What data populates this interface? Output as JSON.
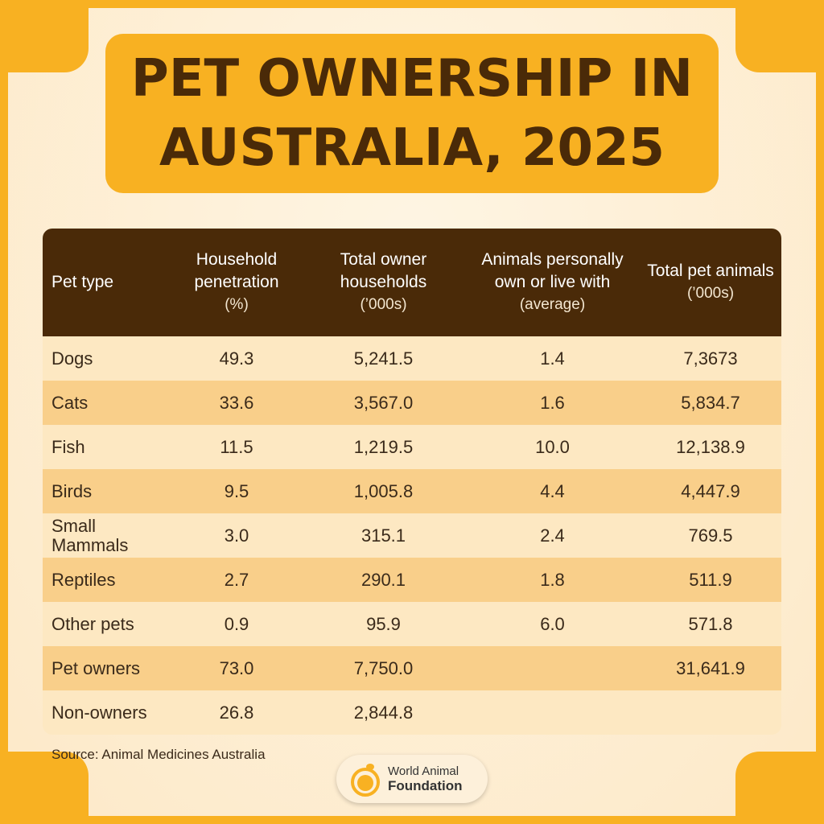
{
  "title": {
    "line1": "PET OWNERSHIP IN",
    "line2": "AUSTRALIA, 2025"
  },
  "table": {
    "headers": [
      {
        "main": "Pet type",
        "sub": ""
      },
      {
        "main": "Household penetration",
        "sub": "(%)"
      },
      {
        "main": "Total owner households",
        "sub": "(’000s)"
      },
      {
        "main": "Animals personally own or live with",
        "sub": "(average)"
      },
      {
        "main": "Total pet animals",
        "sub": "(’000s)"
      }
    ],
    "rows": [
      [
        "Dogs",
        "49.3",
        "5,241.5",
        "1.4",
        "7,3673"
      ],
      [
        "Cats",
        "33.6",
        "3,567.0",
        "1.6",
        "5,834.7"
      ],
      [
        "Fish",
        "11.5",
        "1,219.5",
        "10.0",
        "12,138.9"
      ],
      [
        "Birds",
        "9.5",
        "1,005.8",
        "4.4",
        "4,447.9"
      ],
      [
        "Small Mammals",
        "3.0",
        "315.1",
        "2.4",
        "769.5"
      ],
      [
        "Reptiles",
        "2.7",
        "290.1",
        "1.8",
        "511.9"
      ],
      [
        "Other pets",
        "0.9",
        "95.9",
        "6.0",
        "571.8"
      ],
      [
        "Pet owners",
        "73.0",
        "7,750.0",
        "",
        "31,641.9"
      ],
      [
        "Non-owners",
        "26.8",
        "2,844.8",
        "",
        ""
      ]
    ]
  },
  "source": "Source: Animal Medicines Australia",
  "logo": {
    "line1": "World Animal",
    "line2": "Foundation"
  },
  "colors": {
    "frame": "#f8b122",
    "header": "#4a2a08",
    "row_light": "#fde8c2",
    "row_dark": "#f9cf8a"
  }
}
